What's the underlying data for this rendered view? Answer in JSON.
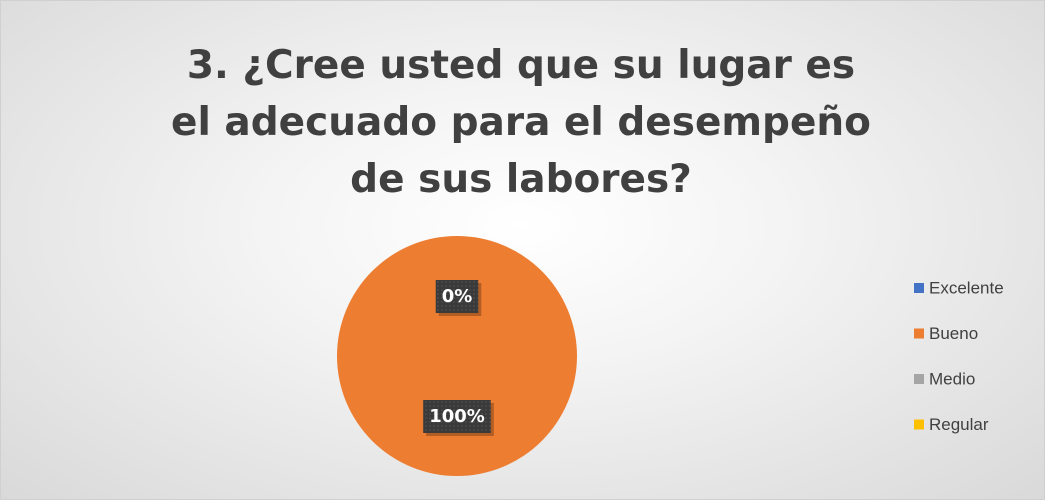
{
  "chart_data": {
    "type": "pie",
    "title": "3. ¿Cree usted que su lugar es el adecuado para el desempeño de sus labores?",
    "categories": [
      "Excelente",
      "Bueno",
      "Medio",
      "Regular"
    ],
    "values": [
      0,
      100,
      0,
      0
    ],
    "value_labels": [
      "0%",
      "100%",
      null,
      null
    ],
    "colors": [
      "#4472c4",
      "#ed7d31",
      "#a5a5a5",
      "#ffc000"
    ],
    "legend": "right"
  }
}
